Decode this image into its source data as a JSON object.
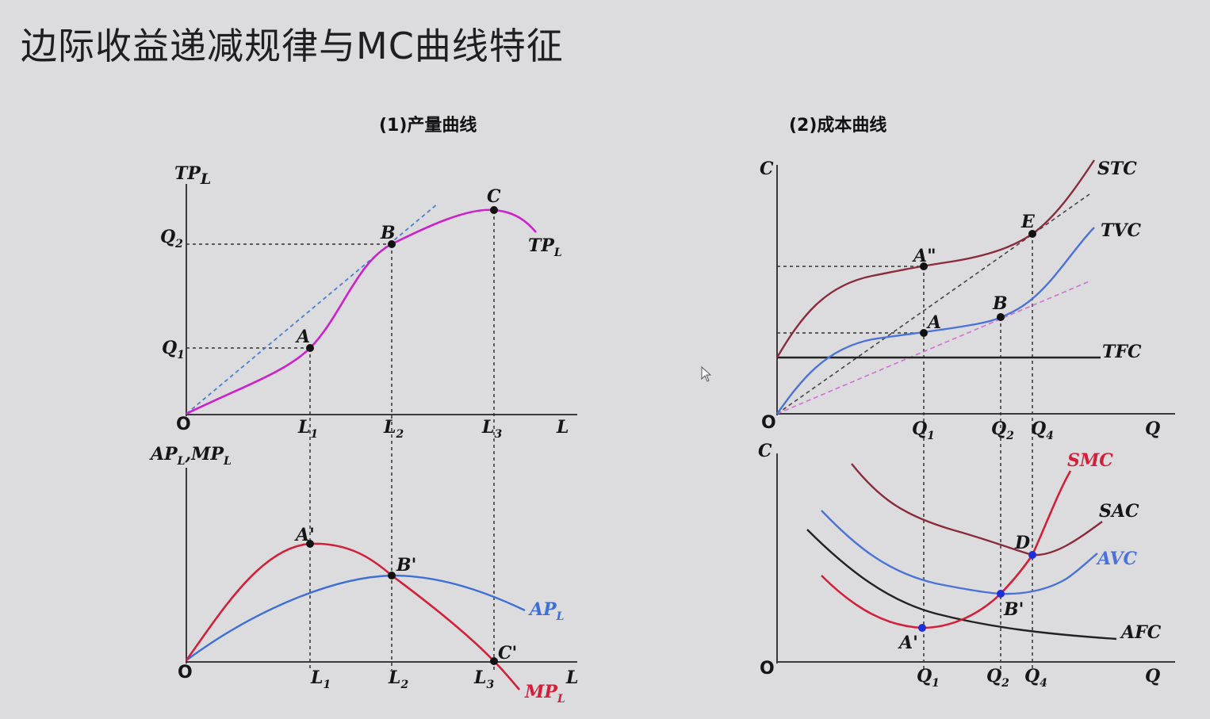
{
  "page": {
    "title": "边际收益递减规律与MC曲线特征"
  },
  "panel_production": {
    "subtitle": "(1)产量曲线",
    "top_axis_y": "TP",
    "top_axis_y_sub": "L",
    "top_axis_x": "L",
    "origin": "O",
    "q1": "Q",
    "q1_sub": "1",
    "q2": "Q",
    "q2_sub": "2",
    "l1": "L",
    "l1_sub": "1",
    "l2": "L",
    "l2_sub": "2",
    "l3": "L",
    "l3_sub": "3",
    "point_a": "A",
    "point_b": "B",
    "point_c": "C",
    "curve_tp": "TP",
    "curve_tp_sub": "L",
    "bottom_axis_y": "AP",
    "bottom_axis_y_sub": "L",
    "bottom_axis_y_mid": ",MP",
    "bottom_axis_y_sub2": "L",
    "bottom_axis_x": "L",
    "bottom_origin": "O",
    "point_a_prime": "A'",
    "point_b_prime": "B'",
    "point_c_prime": "C'",
    "curve_ap": "AP",
    "curve_ap_sub": "L",
    "curve_mp": "MP",
    "curve_mp_sub": "L",
    "colors": {
      "tp": "#cc22cc",
      "tangent": "#4a7fd0",
      "ap": "#3d6fd6",
      "mp": "#d3203a"
    }
  },
  "panel_cost": {
    "subtitle": "(2)成本曲线",
    "top_axis_y": "C",
    "top_axis_x": "Q",
    "origin": "O",
    "curve_stc": "STC",
    "curve_tvc": "TVC",
    "curve_tfc": "TFC",
    "point_a2": "A\"",
    "point_a": "A",
    "point_b": "B",
    "point_e": "E",
    "q1": "Q",
    "q1_sub": "1",
    "q2": "Q",
    "q2_sub": "2",
    "q4": "Q",
    "q4_sub": "4",
    "bottom_axis_y": "C",
    "bottom_axis_x": "Q",
    "bottom_origin": "O",
    "curve_smc": "SMC",
    "curve_sac": "SAC",
    "curve_avc": "AVC",
    "curve_afc": "AFC",
    "point_a_prime": "A'",
    "point_b_prime": "B'",
    "point_d": "D",
    "colors": {
      "stc": "#8a2b3c",
      "tvc": "#4a72d8",
      "tfc": "#222222",
      "smc": "#d3203a",
      "sac": "#8a2b3c",
      "avc": "#4a72d8",
      "afc": "#222222",
      "ray": "#444444",
      "ray2": "#d070d0"
    }
  }
}
